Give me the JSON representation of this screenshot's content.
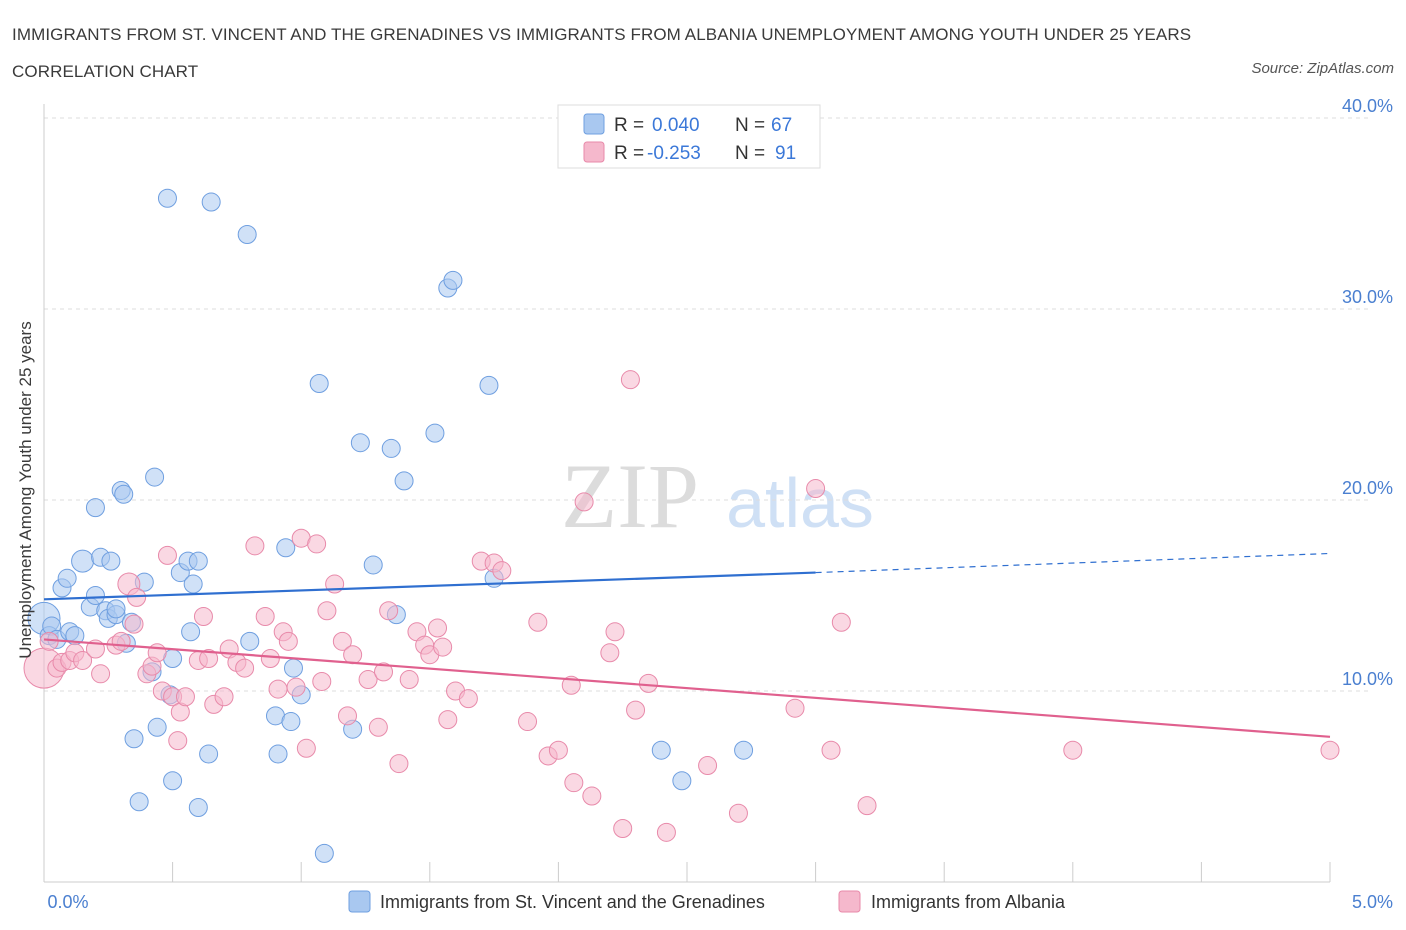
{
  "title": "IMMIGRANTS FROM ST. VINCENT AND THE GRENADINES VS IMMIGRANTS FROM ALBANIA UNEMPLOYMENT AMONG YOUTH UNDER 25 YEARS CORRELATION CHART",
  "source": "Source: ZipAtlas.com",
  "watermark": {
    "zip": "ZIP",
    "atlas": "atlas"
  },
  "colors": {
    "blue_fill": "#a9c8f0",
    "blue_stroke": "#6f9fe0",
    "blue_line": "#2f6fd0",
    "pink_fill": "#f5b8cc",
    "pink_stroke": "#e88aaa",
    "pink_line": "#e0608e",
    "grid": "#dddddd",
    "axis_text": "#4a7fd0"
  },
  "legend": {
    "rows": [
      {
        "r_label": "R =",
        "r_value": "0.040",
        "n_label": "N =",
        "n_value": "67"
      },
      {
        "r_label": "R =",
        "r_value": "-0.253",
        "n_label": "N =",
        "n_value": "91"
      }
    ]
  },
  "chart_data": {
    "type": "scatter",
    "title": "IMMIGRANTS FROM ST. VINCENT AND THE GRENADINES VS IMMIGRANTS FROM ALBANIA UNEMPLOYMENT AMONG YOUTH UNDER 25 YEARS CORRELATION CHART",
    "xlabel": "",
    "ylabel": "Unemployment Among Youth under 25 years",
    "xlim": [
      0,
      5
    ],
    "ylim": [
      0,
      40
    ],
    "x_ticks_labels": [
      "0.0%",
      "5.0%"
    ],
    "y_ticks": [
      10,
      20,
      30,
      40
    ],
    "y_ticks_labels": [
      "10.0%",
      "20.0%",
      "30.0%",
      "40.0%"
    ],
    "grid": true,
    "legend_position": "top-center",
    "series": [
      {
        "name": "Immigrants from St. Vincent and the Grenadines",
        "color": "#6f9fe0",
        "trend": {
          "x0": 0.0,
          "y0": 14.8,
          "x1": 3.0,
          "y1": 16.2,
          "dashed_to_x": 5.0,
          "dashed_to_y": 17.2
        },
        "points": [
          [
            0.0,
            13.8,
            16
          ],
          [
            0.02,
            12.9,
            9
          ],
          [
            0.03,
            13.4,
            9
          ],
          [
            0.05,
            12.7,
            9
          ],
          [
            0.07,
            15.4,
            9
          ],
          [
            0.09,
            15.9,
            9
          ],
          [
            0.1,
            13.1,
            9
          ],
          [
            0.12,
            12.9,
            9
          ],
          [
            0.15,
            16.8,
            11
          ],
          [
            0.18,
            14.4,
            9
          ],
          [
            0.2,
            15.0,
            9
          ],
          [
            0.2,
            19.6,
            9
          ],
          [
            0.22,
            17.0,
            9
          ],
          [
            0.24,
            14.2,
            9
          ],
          [
            0.25,
            13.8,
            9
          ],
          [
            0.26,
            16.8,
            9
          ],
          [
            0.28,
            14.0,
            9
          ],
          [
            0.28,
            14.3,
            9
          ],
          [
            0.3,
            20.5,
            9
          ],
          [
            0.31,
            20.3,
            9
          ],
          [
            0.32,
            12.5,
            9
          ],
          [
            0.34,
            13.6,
            9
          ],
          [
            0.35,
            7.5,
            9
          ],
          [
            0.37,
            4.2,
            9
          ],
          [
            0.39,
            15.7,
            9
          ],
          [
            0.42,
            11.0,
            9
          ],
          [
            0.43,
            21.2,
            9
          ],
          [
            0.44,
            8.1,
            9
          ],
          [
            0.48,
            35.8,
            9
          ],
          [
            0.49,
            9.8,
            9
          ],
          [
            0.5,
            11.7,
            9
          ],
          [
            0.5,
            5.3,
            9
          ],
          [
            0.53,
            16.2,
            9
          ],
          [
            0.56,
            16.8,
            9
          ],
          [
            0.57,
            13.1,
            9
          ],
          [
            0.58,
            15.6,
            9
          ],
          [
            0.6,
            16.8,
            9
          ],
          [
            0.6,
            3.9,
            9
          ],
          [
            0.64,
            6.7,
            9
          ],
          [
            0.65,
            35.6,
            9
          ],
          [
            0.79,
            33.9,
            9
          ],
          [
            0.8,
            12.6,
            9
          ],
          [
            0.9,
            8.7,
            9
          ],
          [
            0.91,
            6.7,
            9
          ],
          [
            0.94,
            17.5,
            9
          ],
          [
            0.96,
            8.4,
            9
          ],
          [
            0.97,
            11.2,
            9
          ],
          [
            1.0,
            9.8,
            9
          ],
          [
            1.07,
            26.1,
            9
          ],
          [
            1.09,
            1.5,
            9
          ],
          [
            1.2,
            8.0,
            9
          ],
          [
            1.23,
            23.0,
            9
          ],
          [
            1.28,
            16.6,
            9
          ],
          [
            1.35,
            22.7,
            9
          ],
          [
            1.37,
            14.0,
            9
          ],
          [
            1.4,
            21.0,
            9
          ],
          [
            1.52,
            23.5,
            9
          ],
          [
            1.57,
            31.1,
            9
          ],
          [
            1.59,
            31.5,
            9
          ],
          [
            1.73,
            26.0,
            9
          ],
          [
            1.75,
            15.9,
            9
          ],
          [
            2.4,
            6.9,
            9
          ],
          [
            2.48,
            5.3,
            9
          ],
          [
            2.72,
            6.9,
            9
          ]
        ]
      },
      {
        "name": "Immigrants from Albania",
        "color": "#e88aaa",
        "trend": {
          "x0": 0.0,
          "y0": 12.7,
          "x1": 5.0,
          "y1": 7.6
        },
        "points": [
          [
            0.0,
            11.2,
            20
          ],
          [
            0.02,
            12.6,
            9
          ],
          [
            0.05,
            11.2,
            9
          ],
          [
            0.07,
            11.5,
            9
          ],
          [
            0.1,
            11.6,
            9
          ],
          [
            0.12,
            12.0,
            9
          ],
          [
            0.15,
            11.6,
            9
          ],
          [
            0.2,
            12.2,
            9
          ],
          [
            0.22,
            10.9,
            9
          ],
          [
            0.28,
            12.4,
            9
          ],
          [
            0.3,
            12.6,
            9
          ],
          [
            0.33,
            15.6,
            11
          ],
          [
            0.35,
            13.5,
            9
          ],
          [
            0.36,
            14.9,
            9
          ],
          [
            0.4,
            10.9,
            9
          ],
          [
            0.42,
            11.3,
            9
          ],
          [
            0.44,
            12.0,
            9
          ],
          [
            0.46,
            10.0,
            9
          ],
          [
            0.48,
            17.1,
            9
          ],
          [
            0.5,
            9.7,
            9
          ],
          [
            0.52,
            7.4,
            9
          ],
          [
            0.53,
            8.9,
            9
          ],
          [
            0.55,
            9.7,
            9
          ],
          [
            0.6,
            11.6,
            9
          ],
          [
            0.62,
            13.9,
            9
          ],
          [
            0.64,
            11.7,
            9
          ],
          [
            0.66,
            9.3,
            9
          ],
          [
            0.7,
            9.7,
            9
          ],
          [
            0.72,
            12.2,
            9
          ],
          [
            0.75,
            11.5,
            9
          ],
          [
            0.78,
            11.2,
            9
          ],
          [
            0.82,
            17.6,
            9
          ],
          [
            0.86,
            13.9,
            9
          ],
          [
            0.88,
            11.7,
            9
          ],
          [
            0.91,
            10.1,
            9
          ],
          [
            0.93,
            13.1,
            9
          ],
          [
            0.95,
            12.6,
            9
          ],
          [
            0.98,
            10.2,
            9
          ],
          [
            1.0,
            18.0,
            9
          ],
          [
            1.02,
            7.0,
            9
          ],
          [
            1.06,
            17.7,
            9
          ],
          [
            1.08,
            10.5,
            9
          ],
          [
            1.1,
            14.2,
            9
          ],
          [
            1.13,
            15.6,
            9
          ],
          [
            1.16,
            12.6,
            9
          ],
          [
            1.18,
            8.7,
            9
          ],
          [
            1.2,
            11.9,
            9
          ],
          [
            1.26,
            10.6,
            9
          ],
          [
            1.3,
            8.1,
            9
          ],
          [
            1.32,
            11.0,
            9
          ],
          [
            1.34,
            14.2,
            9
          ],
          [
            1.38,
            6.2,
            9
          ],
          [
            1.42,
            10.6,
            9
          ],
          [
            1.45,
            13.1,
            9
          ],
          [
            1.48,
            12.4,
            9
          ],
          [
            1.5,
            11.9,
            9
          ],
          [
            1.53,
            13.3,
            9
          ],
          [
            1.55,
            12.3,
            9
          ],
          [
            1.57,
            8.5,
            9
          ],
          [
            1.6,
            10.0,
            9
          ],
          [
            1.65,
            9.6,
            9
          ],
          [
            1.7,
            16.8,
            9
          ],
          [
            1.75,
            16.7,
            9
          ],
          [
            1.78,
            16.3,
            9
          ],
          [
            1.88,
            8.4,
            9
          ],
          [
            1.92,
            13.6,
            9
          ],
          [
            1.96,
            6.6,
            9
          ],
          [
            2.0,
            6.9,
            9
          ],
          [
            2.05,
            10.3,
            9
          ],
          [
            2.06,
            5.2,
            9
          ],
          [
            2.1,
            19.9,
            9
          ],
          [
            2.13,
            4.5,
            9
          ],
          [
            2.2,
            12.0,
            9
          ],
          [
            2.22,
            13.1,
            9
          ],
          [
            2.25,
            2.8,
            9
          ],
          [
            2.28,
            26.3,
            9
          ],
          [
            2.3,
            9.0,
            9
          ],
          [
            2.35,
            10.4,
            9
          ],
          [
            2.42,
            2.6,
            9
          ],
          [
            2.58,
            6.1,
            9
          ],
          [
            2.7,
            3.6,
            9
          ],
          [
            2.92,
            9.1,
            9
          ],
          [
            3.0,
            20.6,
            9
          ],
          [
            3.06,
            6.9,
            9
          ],
          [
            3.1,
            13.6,
            9
          ],
          [
            3.2,
            4.0,
            9
          ],
          [
            4.0,
            6.9,
            9
          ],
          [
            5.0,
            6.9,
            9
          ]
        ]
      }
    ]
  }
}
